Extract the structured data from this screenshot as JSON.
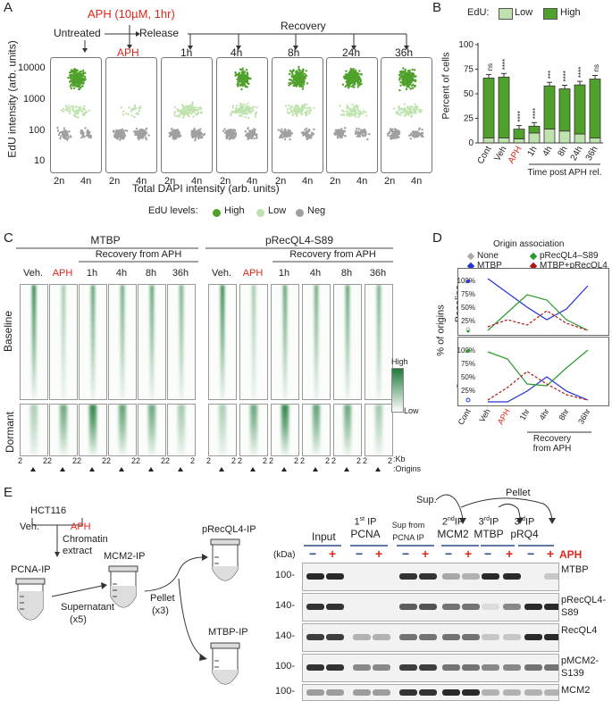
{
  "panelA": {
    "label": "A",
    "treat_title": "APH (10µM, 1hr)",
    "untreated": "Untreated",
    "release": "Release",
    "recovery": "Recovery",
    "conditions": [
      "APH",
      "1h",
      "4h",
      "8h",
      "24h",
      "36h"
    ],
    "y_ticks": [
      "10000",
      "1000",
      "100",
      "10"
    ],
    "ylabel": "EdU intensity (arb. units)",
    "xticks": [
      "2n",
      "4n"
    ],
    "xlabel": "Total DAPI intensity (arb. units)",
    "legend_title": "EdU levels:",
    "legend": [
      "High",
      "Low",
      "Neg"
    ],
    "colors": {
      "high": "#4fa12b",
      "low": "#bfe3ae",
      "neg": "#a0a0a0"
    }
  },
  "panelB": {
    "label": "B",
    "legend_title": "EdU:",
    "legend": [
      "Low",
      "High"
    ],
    "ylabel": "Percent of cells",
    "xlabel": "Time post APH rel.",
    "sig": [
      "ns",
      "ns",
      "****",
      "****",
      "****",
      "***",
      "****",
      "****",
      "ns"
    ]
  },
  "chart_data": {
    "type": "bar",
    "categories": [
      "Cont",
      "Veh",
      "APH",
      "1h",
      "4h",
      "8h",
      "24h",
      "36h"
    ],
    "series": [
      {
        "name": "Low",
        "values": [
          5,
          5,
          4,
          10,
          14,
          12,
          9,
          5
        ]
      },
      {
        "name": "High",
        "values": [
          61,
          62,
          10,
          7,
          44,
          43,
          50,
          60
        ]
      }
    ],
    "ylabel": "Percent of cells",
    "yticks": [
      0,
      25,
      50,
      75,
      100
    ],
    "ylim": [
      0,
      100
    ]
  },
  "panelC": {
    "label": "C",
    "group1": "MTBP",
    "group2": "pRecQL4-S89",
    "recovery": "Recovery from APH",
    "lanes": [
      "Veh.",
      "APH",
      "1h",
      "4h",
      "8h",
      "36h"
    ],
    "row1": "Baseline",
    "row2": "Dormant",
    "scale_high": "High",
    "scale_low": "Low",
    "kb": "2",
    "kb_unit": ":Kb",
    "origins": ":Origins"
  },
  "panelD": {
    "label": "D",
    "legend_title": "Origin association",
    "legend": [
      "None",
      "pRecQL4–S89",
      "MTBP",
      "MTBP+pRecQL4"
    ],
    "ylabel": "% of origins",
    "row1": "Baseline",
    "row2": "Dormant",
    "yticks": [
      "100%",
      "75%",
      "50%",
      "25%"
    ],
    "xcats": [
      "Cont",
      "Veh",
      "APH",
      "1hr",
      "4hr",
      "8hr",
      "36hr"
    ],
    "xlabel": "Recovery from APH"
  },
  "panelE": {
    "label": "E",
    "cell_line": "HCT116",
    "veh": "Veh.",
    "aph": "APH",
    "chromatin": "Chromatin\nextract",
    "pcna_ip": "PCNA-IP",
    "mcm2_ip": "MCM2-IP",
    "precql4_ip": "pRecQL4-IP",
    "mtbp_ip": "MTBP-IP",
    "supernatant": "Supernatant",
    "x5": "(x5)",
    "pellet": "Pellet",
    "x3": "(x3)",
    "sup": "Sup.",
    "pellet_top": "Pellet",
    "lanes": [
      "Input",
      "1st IP PCNA",
      "Sup from PCNA IP",
      "2nd IP MCM2",
      "3rd IP MTBP",
      "3rd IP pRQ4"
    ],
    "input": "Input",
    "ip1": "1",
    "ip1_sup": "st",
    "ip1_rest": " IP",
    "pcna": "PCNA",
    "sup_from": "Sup from",
    "pcna_ip_small": "PCNA IP",
    "ip2": "2",
    "ip2_sup": "nd",
    "ip2_rest": "IP",
    "mcm2": "MCM2",
    "ip3": "3",
    "ip3_sup": "rd",
    "ip3_rest": "IP",
    "mtbp": "MTBP",
    "prq4": "pRQ4",
    "minus": "−",
    "plus": "+",
    "aph_label": "APH",
    "kda": "(kDa)",
    "markers": [
      "100-",
      "140-",
      "140-",
      "100-",
      "100-"
    ],
    "blots": [
      "MTBP",
      "pRecQL4-\nS89",
      "RecQL4",
      "pMCM2-\nS139",
      "MCM2"
    ]
  }
}
